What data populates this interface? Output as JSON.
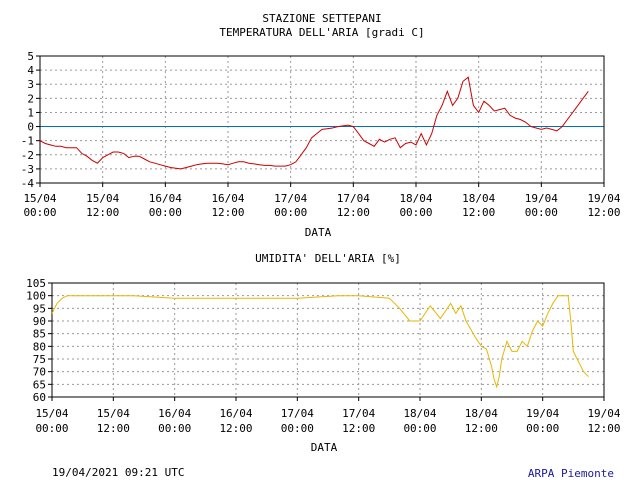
{
  "colors": {
    "temperature": "#cc0000",
    "humidity": "#e6b800",
    "zero_line": "#0070c0",
    "grid": "#9a9a9a",
    "footer_org": "#1a1a9a"
  },
  "footer": {
    "date": "19/04/2021 09:21 UTC",
    "org": "ARPA Piemonte"
  },
  "chart_data": [
    {
      "type": "line",
      "title": "STAZIONE SETTEPANI",
      "subtitle": "TEMPERATURA DELL'ARIA [gradi C]",
      "xlabel": "DATA",
      "ylabel": "",
      "x_tick_labels": [
        "15/04 00:00",
        "15/04 12:00",
        "16/04 00:00",
        "16/04 12:00",
        "17/04 00:00",
        "17/04 12:00",
        "18/04 00:00",
        "18/04 12:00",
        "19/04 00:00",
        "19/04 12:00"
      ],
      "xlim_hours": [
        0,
        108
      ],
      "ylim": [
        -4,
        5
      ],
      "yticks": [
        5,
        4,
        3,
        2,
        1,
        0,
        -1,
        -2,
        -3,
        -4
      ],
      "reference_line": 0,
      "grid": true,
      "series": [
        {
          "x": [
            0,
            1,
            2,
            3,
            4,
            5,
            6,
            7,
            8,
            9,
            10,
            11,
            12,
            13,
            14,
            15,
            16,
            17,
            18,
            19,
            20,
            21,
            22,
            23,
            24,
            25,
            26,
            27,
            28,
            29,
            30,
            31,
            32,
            33,
            34,
            35,
            36,
            37,
            38,
            39,
            40,
            41,
            42,
            43,
            44,
            45,
            46,
            47,
            48,
            49,
            50,
            51,
            52,
            53,
            54,
            55,
            56,
            57,
            58,
            59,
            60,
            61,
            62,
            63,
            64,
            65,
            66,
            67,
            68,
            69,
            70,
            71,
            72,
            73,
            74,
            75,
            76,
            77,
            78,
            79,
            80,
            81,
            82,
            83,
            84,
            85,
            86,
            87,
            88,
            89,
            90,
            91,
            92,
            93,
            94,
            95,
            96,
            97,
            98,
            99,
            100,
            101,
            102,
            103,
            104,
            105
          ],
          "y": [
            -1,
            -1.2,
            -1.3,
            -1.4,
            -1.4,
            -1.5,
            -1.5,
            -1.5,
            -1.9,
            -2.1,
            -2.4,
            -2.6,
            -2.2,
            -2,
            -1.8,
            -1.8,
            -1.9,
            -2.2,
            -2.1,
            -2.1,
            -2.3,
            -2.5,
            -2.6,
            -2.7,
            -2.8,
            -2.9,
            -2.95,
            -3,
            -2.9,
            -2.8,
            -2.7,
            -2.65,
            -2.6,
            -2.6,
            -2.6,
            -2.65,
            -2.7,
            -2.6,
            -2.5,
            -2.5,
            -2.6,
            -2.65,
            -2.7,
            -2.75,
            -2.75,
            -2.8,
            -2.8,
            -2.8,
            -2.7,
            -2.5,
            -2,
            -1.5,
            -0.8,
            -0.5,
            -0.2,
            -0.15,
            -0.1,
            0,
            0.05,
            0.1,
            0,
            -0.5,
            -1,
            -1.2,
            -1.4,
            -0.9,
            -1.1,
            -0.9,
            -0.8,
            -1.5,
            -1.2,
            -1.1,
            -1.3,
            -0.5,
            -1.3,
            -0.5,
            0.8,
            1.5,
            2.5,
            1.5,
            2,
            3.2,
            3.5,
            1.5,
            1,
            1.8,
            1.5,
            1.1,
            1.2,
            1.3,
            0.8,
            0.6,
            0.5,
            0.3,
            0,
            -0.1,
            -0.2,
            -0.1,
            -0.2,
            -0.3,
            0,
            0.5,
            1,
            1.5,
            2,
            2.5
          ]
        }
      ]
    },
    {
      "type": "line",
      "title": "UMIDITA' DELL'ARIA [%]",
      "xlabel": "DATA",
      "ylabel": "",
      "x_tick_labels": [
        "15/04 00:00",
        "15/04 12:00",
        "16/04 00:00",
        "16/04 12:00",
        "17/04 00:00",
        "17/04 12:00",
        "18/04 00:00",
        "18/04 12:00",
        "19/04 00:00",
        "19/04 12:00"
      ],
      "xlim_hours": [
        0,
        108
      ],
      "ylim": [
        60,
        105
      ],
      "yticks": [
        105,
        100,
        95,
        90,
        85,
        80,
        75,
        70,
        65,
        60
      ],
      "grid": true,
      "series": [
        {
          "x": [
            0,
            1,
            2,
            3,
            4,
            5,
            8,
            12,
            16,
            24,
            30,
            40,
            48,
            56,
            60,
            66,
            68,
            70,
            72,
            74,
            76,
            78,
            79,
            80,
            81,
            83,
            84,
            85,
            86,
            86.5,
            87,
            87.5,
            88,
            89,
            90,
            91,
            92,
            93,
            94,
            95,
            96,
            97,
            98,
            99,
            100,
            101,
            101.5,
            102,
            103,
            104,
            105
          ],
          "y": [
            93,
            97,
            99,
            100,
            100,
            100,
            100,
            100,
            100,
            99,
            99,
            99,
            99,
            100,
            100,
            99,
            95,
            90,
            90,
            96,
            91,
            97,
            93,
            96,
            90,
            83,
            80,
            79,
            72,
            67,
            64,
            68,
            75,
            82,
            78,
            78,
            82,
            80,
            86,
            90,
            88,
            93,
            97,
            100,
            100,
            100,
            90,
            78,
            74,
            70,
            68
          ]
        }
      ]
    }
  ]
}
